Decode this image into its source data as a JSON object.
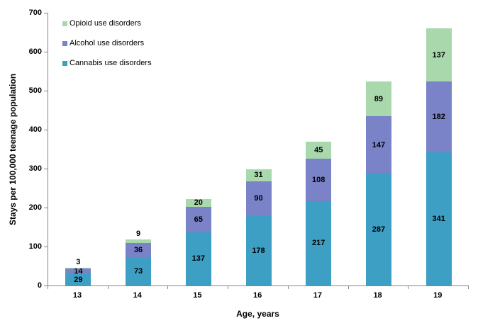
{
  "chart_data": {
    "type": "bar",
    "stacked": true,
    "title": "",
    "xlabel": "Age, years",
    "ylabel": "Stays per 100,000 teenage population",
    "categories": [
      "13",
      "14",
      "15",
      "16",
      "17",
      "18",
      "19"
    ],
    "series": [
      {
        "name": "Cannabis use disorders",
        "color": "#3E9FC5",
        "values": [
          29,
          73,
          137,
          178,
          217,
          287,
          341
        ]
      },
      {
        "name": "Alcohol use disorders",
        "color": "#7A82C8",
        "values": [
          14,
          36,
          65,
          90,
          108,
          147,
          182
        ]
      },
      {
        "name": "Opioid use disorders",
        "color": "#A8D8AC",
        "values": [
          3,
          9,
          20,
          31,
          45,
          89,
          137
        ]
      }
    ],
    "legend_order_top_to_bottom": [
      "Opioid use disorders",
      "Alcohol use disorders",
      "Cannabis use disorders"
    ],
    "legend_position": "top-left-inside",
    "y_ticks": [
      0,
      100,
      200,
      300,
      400,
      500,
      600,
      700
    ],
    "ylim": [
      0,
      700
    ],
    "grid": false,
    "axis_color": "#868686",
    "label_color": "#000000"
  }
}
